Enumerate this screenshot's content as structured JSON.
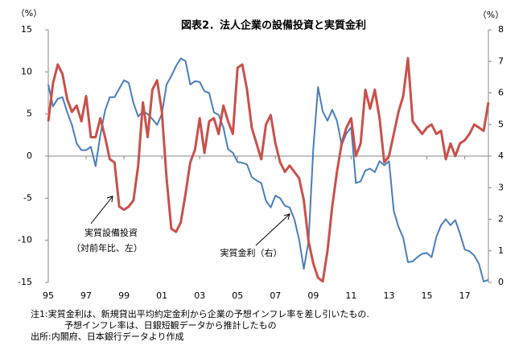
{
  "chart_data": {
    "type": "line",
    "title": "図表2．法人企業の設備投資と実質金利",
    "y_unit": "（%）",
    "y2_unit": "（%）",
    "categories": [
      "95",
      null,
      null,
      null,
      null,
      null,
      null,
      null,
      "97",
      null,
      null,
      null,
      null,
      null,
      null,
      null,
      "99",
      null,
      null,
      null,
      null,
      null,
      null,
      null,
      "01",
      null,
      null,
      null,
      null,
      null,
      null,
      null,
      "03",
      null,
      null,
      null,
      null,
      null,
      null,
      null,
      "05",
      null,
      null,
      null,
      null,
      null,
      null,
      null,
      "07",
      null,
      null,
      null,
      null,
      null,
      null,
      null,
      "09",
      null,
      null,
      null,
      null,
      null,
      null,
      null,
      "11",
      null,
      null,
      null,
      null,
      null,
      null,
      null,
      "13",
      null,
      null,
      null,
      null,
      null,
      null,
      null,
      "15",
      null,
      null,
      null,
      null,
      null,
      null,
      null,
      "17",
      null,
      null,
      null,
      null,
      null
    ],
    "series": [
      {
        "name": "実質設備投資",
        "color": "#4a7ebb",
        "axis": "y",
        "values": [
          8.5,
          5.9,
          6.8,
          7.0,
          5.2,
          3.7,
          1.5,
          0.7,
          0.7,
          1.1,
          -1.2,
          2.5,
          5.4,
          7.0,
          7.0,
          8.0,
          9.0,
          8.7,
          6.3,
          4.7,
          5.3,
          5.0,
          4.4,
          3.7,
          5.0,
          8.5,
          9.5,
          10.7,
          11.6,
          11.3,
          8.5,
          8.9,
          8.8,
          7.7,
          7.5,
          5.2,
          4.9,
          3.4,
          0.8,
          0.4,
          -0.7,
          -0.8,
          -1.0,
          -2.5,
          -2.9,
          -3.2,
          -5.3,
          -6.1,
          -4.7,
          -5.0,
          -5.9,
          -6.1,
          -7.5,
          -9.9,
          -13.4,
          -10.1,
          0.9,
          8.2,
          5.3,
          4.2,
          5.5,
          4.2,
          1.3,
          2.7,
          3.4,
          -3.2,
          -3.0,
          -1.7,
          -1.5,
          -1.9,
          -0.6,
          -1.1,
          -0.6,
          -6.5,
          -8.4,
          -9.7,
          -12.6,
          -12.5,
          -12.0,
          -11.6,
          -11.5,
          -12.0,
          -9.6,
          -8.2,
          -7.5,
          -8.2,
          -7.6,
          -9.2,
          -11.1,
          -11.3,
          -11.8,
          -12.8,
          -14.9,
          -14.7
        ]
      },
      {
        "name": "実質金利（右）",
        "color": "#c9514b",
        "axis": "y2",
        "values": [
          5.1,
          6.3,
          6.9,
          6.6,
          5.8,
          5.4,
          5.6,
          5.1,
          5.9,
          4.6,
          4.6,
          5.2,
          4.6,
          3.9,
          3.8,
          2.4,
          2.3,
          2.4,
          2.6,
          3.7,
          5.7,
          4.6,
          6.1,
          6.4,
          5.4,
          3.3,
          1.7,
          1.6,
          1.9,
          2.8,
          3.8,
          4.2,
          5.2,
          4.1,
          5.1,
          5.2,
          4.7,
          5.6,
          5.1,
          4.7,
          6.8,
          6.9,
          6.1,
          4.9,
          4.4,
          3.9,
          5.0,
          5.3,
          4.4,
          3.8,
          3.5,
          3.7,
          3.5,
          3.3,
          2.6,
          1.3,
          0.6,
          0.15,
          0.03,
          1.0,
          2.4,
          3.5,
          4.4,
          4.9,
          5.2,
          4.0,
          4.4,
          6.1,
          5.5,
          6.1,
          5.2,
          3.8,
          4.0,
          4.7,
          5.4,
          5.9,
          7.1,
          5.1,
          4.9,
          4.7,
          4.9,
          5.0,
          4.7,
          4.8,
          3.9,
          4.4,
          4.0,
          4.4,
          4.5,
          4.7,
          5.0,
          4.9,
          4.8,
          5.7
        ]
      }
    ],
    "ylim": [
      -15,
      15
    ],
    "yticks": [
      -15,
      -10,
      -5,
      0,
      5,
      10,
      15
    ],
    "y2lim": [
      0,
      8
    ],
    "y2ticks": [
      0,
      1,
      2,
      3,
      4,
      5,
      6,
      7,
      8
    ],
    "grid": false,
    "annotations": [
      "（対前年比、左）"
    ],
    "notes": [
      "注1:実質金利は、新規貸出平均約定金利から企業の予想インフレ率を差し引いたもの.",
      "予想インフレ率は、日銀短観データから推計したもの",
      "出所:内閣府、日本銀行データより作成"
    ]
  }
}
